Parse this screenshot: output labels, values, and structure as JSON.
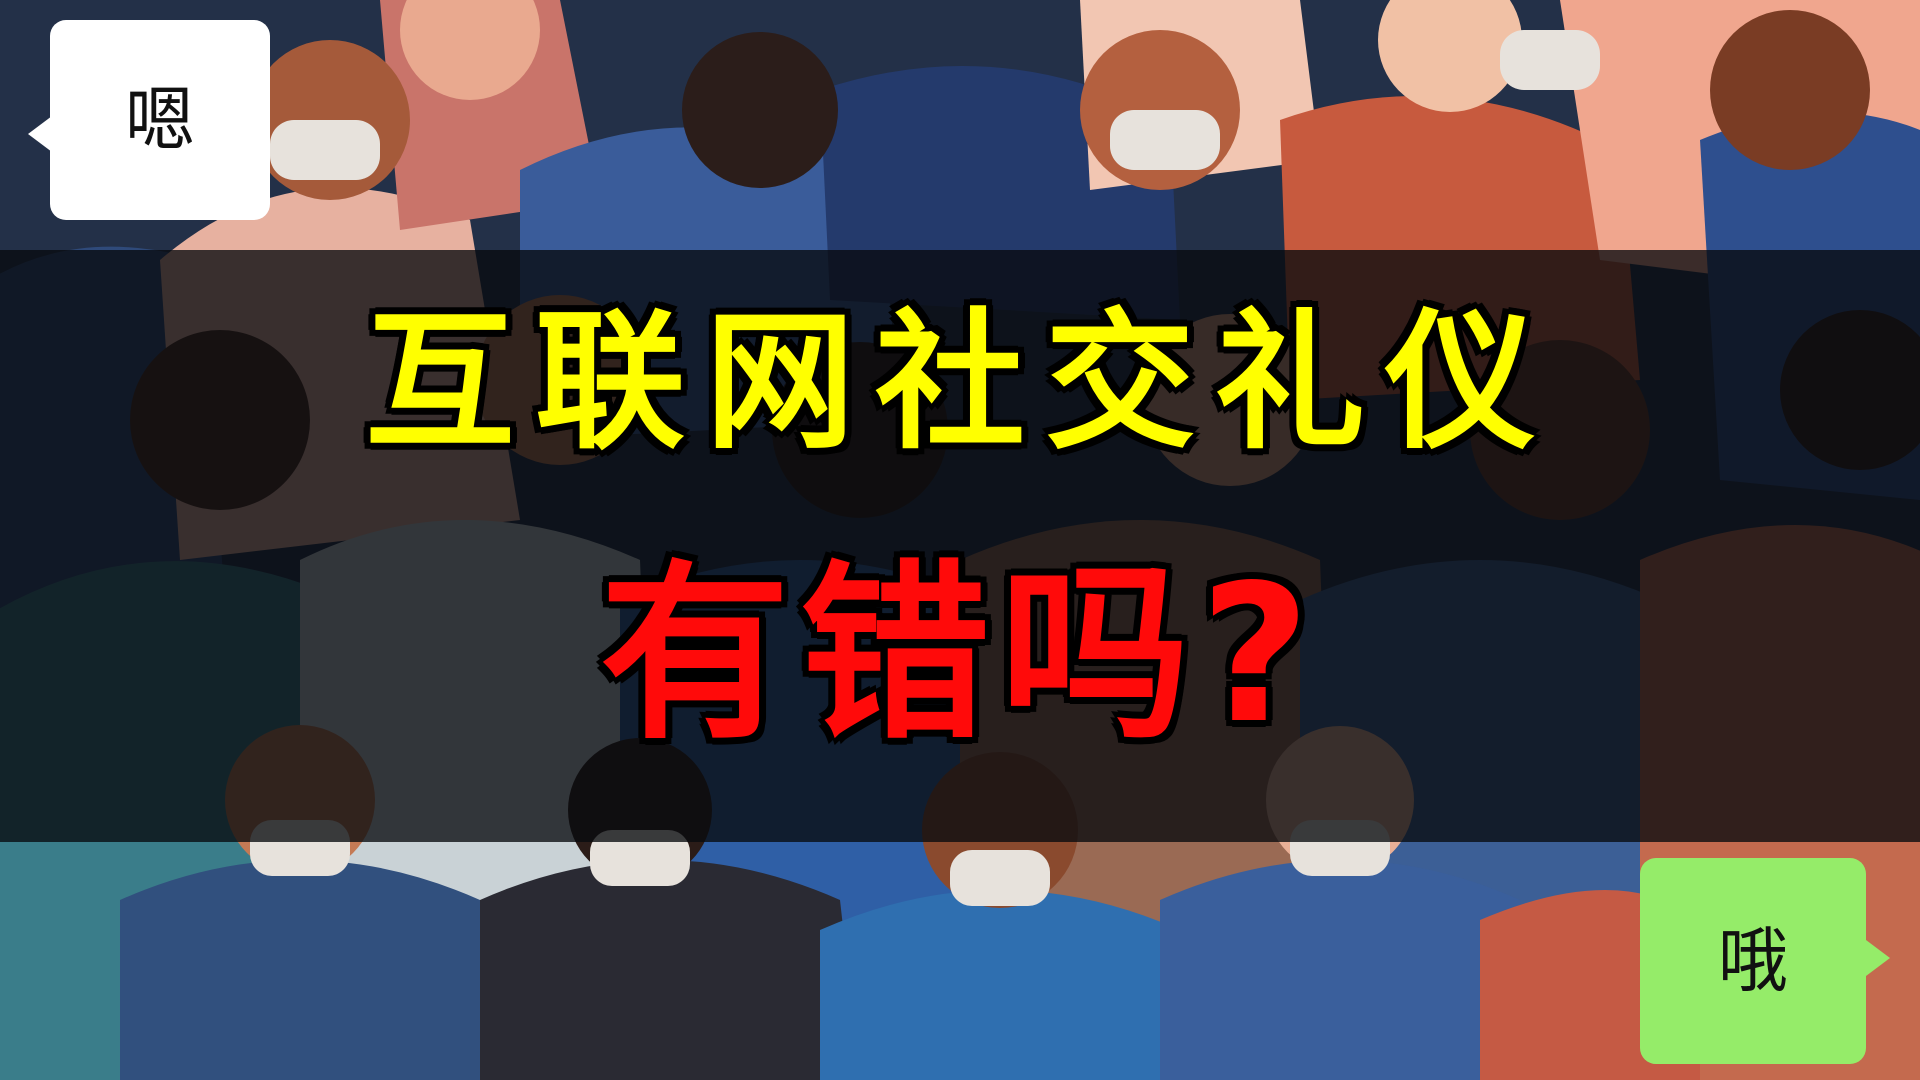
{
  "headline": {
    "line1": "互联网社交礼仪",
    "line2": "有错吗?"
  },
  "bubbles": {
    "left_text": "嗯",
    "right_text": "哦"
  },
  "colors": {
    "headline_line1": "#ffff00",
    "headline_line2": "#ff0a0a",
    "bubble_left_bg": "#ffffff",
    "bubble_right_bg": "#95ec69",
    "band_overlay": "#080a0e"
  }
}
